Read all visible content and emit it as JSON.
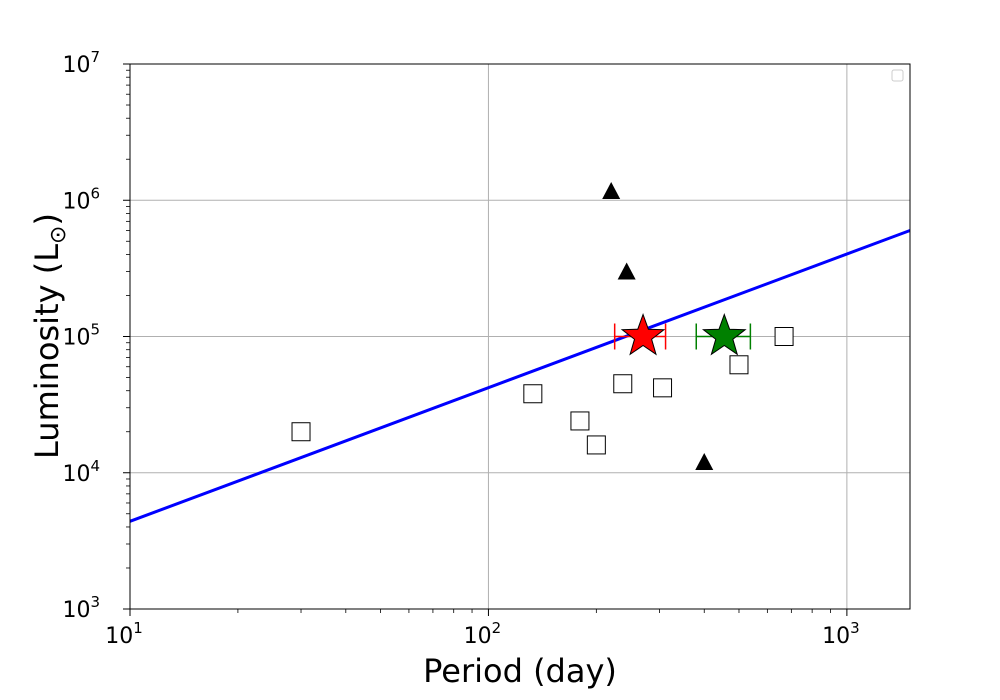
{
  "chart_data": {
    "type": "scatter",
    "xscale": "log",
    "yscale": "log",
    "xlim": [
      10,
      1500
    ],
    "ylim": [
      1000,
      10000000
    ],
    "xlabel": "Period (day)",
    "ylabel": "Luminosity (L",
    "ylabel_symbol": "⊙",
    "ylabel_close": ")",
    "grid": true,
    "legend": "top-right",
    "x_ticks": [
      {
        "value": 10,
        "base": "10",
        "exp": "1"
      },
      {
        "value": 100,
        "base": "10",
        "exp": "2"
      },
      {
        "value": 1000,
        "base": "10",
        "exp": "3"
      }
    ],
    "y_ticks": [
      {
        "value": 1000,
        "base": "10",
        "exp": "3"
      },
      {
        "value": 10000,
        "base": "10",
        "exp": "4"
      },
      {
        "value": 100000,
        "base": "10",
        "exp": "5"
      },
      {
        "value": 1000000,
        "base": "10",
        "exp": "6"
      },
      {
        "value": 10000000,
        "base": "10",
        "exp": "7"
      }
    ],
    "fit_line": {
      "color": "#0000ff",
      "x": [
        10,
        1500
      ],
      "y": [
        4400,
        600000
      ]
    },
    "open_squares": {
      "x": [
        30,
        133,
        180,
        200,
        237,
        306,
        500,
        668
      ],
      "y": [
        20000,
        38000,
        24000,
        16000,
        45000,
        42000,
        62000,
        100000
      ]
    },
    "triangles": {
      "x": [
        220,
        243,
        400
      ],
      "y": [
        1170000,
        300000,
        12000
      ]
    },
    "stars": [
      {
        "x": 270,
        "y": 100000,
        "xerr": [
          225,
          312
        ],
        "color": "#ff0000"
      },
      {
        "x": 455,
        "y": 100000,
        "xerr": [
          380,
          538
        ],
        "color": "#008000"
      }
    ]
  }
}
